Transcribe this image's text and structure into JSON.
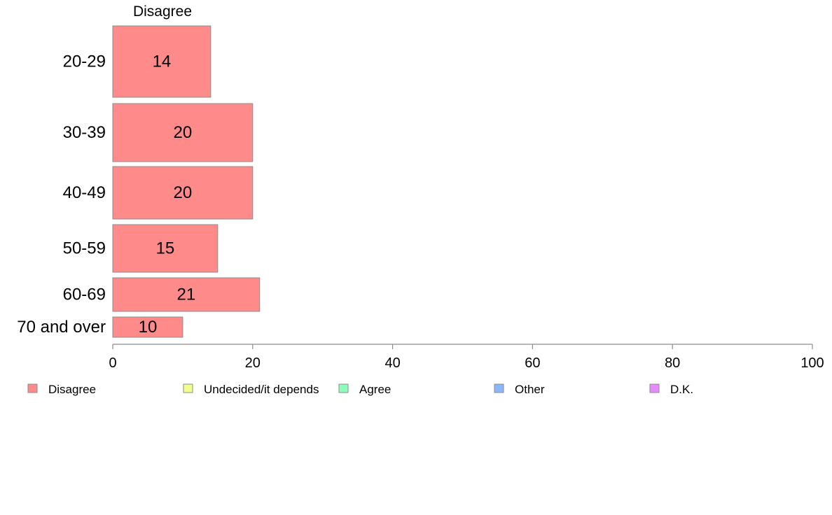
{
  "chart_data": {
    "type": "bar",
    "orientation": "horizontal",
    "stacked": true,
    "column_header": "Disagree",
    "categories": [
      "20-29",
      "30-39",
      "40-49",
      "50-59",
      "60-69",
      "70 and over"
    ],
    "series": [
      {
        "name": "Disagree",
        "color": "#ff8a8a",
        "values": [
          14,
          20,
          20,
          15,
          21,
          10
        ],
        "labels": [
          "14",
          "20",
          "20",
          "15",
          "21",
          "10"
        ]
      }
    ],
    "xlim": [
      0,
      100
    ],
    "xticks": [
      "0",
      "20",
      "40",
      "60",
      "80",
      "100"
    ],
    "grid": false,
    "legend": {
      "position": "bottom",
      "items": [
        {
          "name": "Disagree",
          "color": "#ff8a8a"
        },
        {
          "name": "Undecided/it depends",
          "color": "#f2ff8a"
        },
        {
          "name": "Agree",
          "color": "#8affb8"
        },
        {
          "name": "Other",
          "color": "#8ab8ff"
        },
        {
          "name": "D.K.",
          "color": "#e88aff"
        }
      ]
    }
  }
}
